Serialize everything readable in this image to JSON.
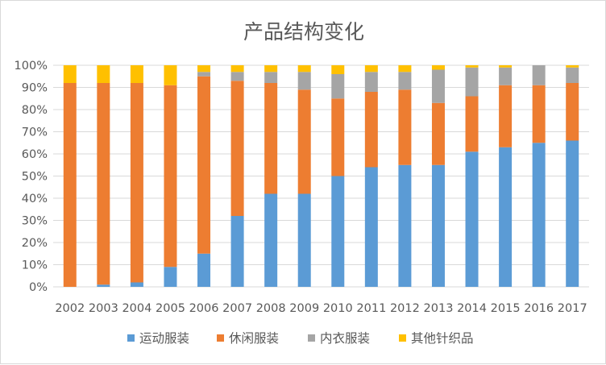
{
  "chart_data": {
    "type": "bar",
    "stacked": true,
    "title": "产品结构变化",
    "xlabel": "",
    "ylabel": "",
    "ylim": [
      0,
      1
    ],
    "y_ticks": [
      "0%",
      "10%",
      "20%",
      "30%",
      "40%",
      "50%",
      "60%",
      "70%",
      "80%",
      "90%",
      "100%"
    ],
    "grid": true,
    "legend_position": "bottom",
    "categories": [
      "2002",
      "2003",
      "2004",
      "2005",
      "2006",
      "2007",
      "2008",
      "2009",
      "2010",
      "2011",
      "2012",
      "2013",
      "2014",
      "2015",
      "2016",
      "2017"
    ],
    "series": [
      {
        "name": "运动服装",
        "color": "#5b9bd5",
        "values": [
          0.0,
          0.01,
          0.02,
          0.09,
          0.15,
          0.32,
          0.42,
          0.42,
          0.5,
          0.54,
          0.55,
          0.55,
          0.61,
          0.63,
          0.65,
          0.66
        ]
      },
      {
        "name": "休闲服装",
        "color": "#ed7d31",
        "values": [
          0.92,
          0.91,
          0.9,
          0.82,
          0.8,
          0.61,
          0.5,
          0.47,
          0.35,
          0.34,
          0.34,
          0.28,
          0.25,
          0.28,
          0.26,
          0.26
        ]
      },
      {
        "name": "内衣服装",
        "color": "#a5a5a5",
        "values": [
          0.0,
          0.0,
          0.0,
          0.0,
          0.02,
          0.04,
          0.05,
          0.08,
          0.11,
          0.09,
          0.08,
          0.15,
          0.13,
          0.08,
          0.09,
          0.07
        ]
      },
      {
        "name": "其他针织品",
        "color": "#ffc000",
        "values": [
          0.08,
          0.08,
          0.08,
          0.09,
          0.03,
          0.03,
          0.03,
          0.03,
          0.04,
          0.03,
          0.03,
          0.02,
          0.01,
          0.01,
          0.0,
          0.01
        ]
      }
    ]
  }
}
